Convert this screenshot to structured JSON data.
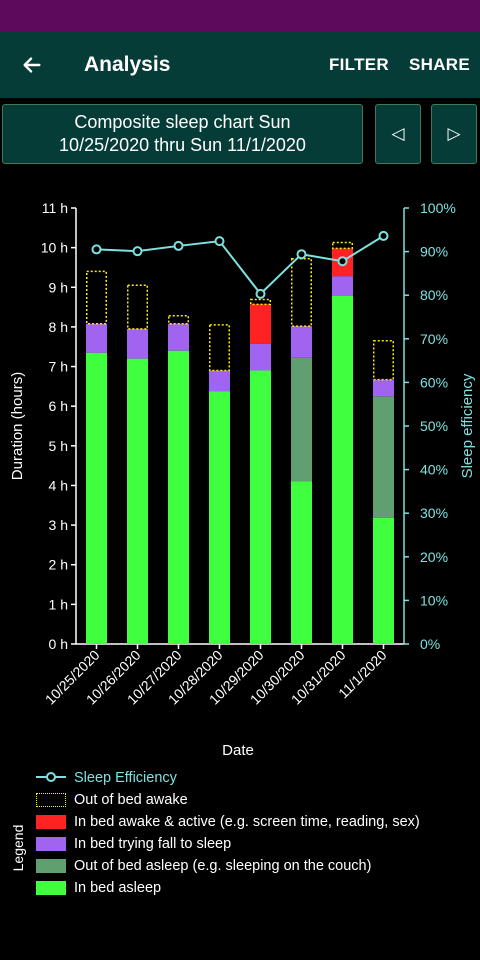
{
  "app_bar": {
    "title": "Analysis",
    "filter_label": "FILTER",
    "share_label": "SHARE",
    "back_icon": "arrow-left-icon"
  },
  "header": {
    "chart_title": "Composite sleep chart Sun\n10/25/2020 thru Sun 11/1/2020",
    "prev_symbol": "◁",
    "next_symbol": "▷"
  },
  "colors": {
    "status_bar": "#5e0a5c",
    "app_bar": "#063c38",
    "in_bed_asleep": "#3fff3f",
    "out_of_bed_asleep": "#5f9f70",
    "in_bed_trying": "#a064f0",
    "in_bed_awake_active": "#ff2222",
    "out_of_bed_awake": "#ffee00",
    "efficiency": "#7fe0e0"
  },
  "chart_data": {
    "type": "bar",
    "stacked": true,
    "categories": [
      "10/25/2020",
      "10/26/2020",
      "10/27/2020",
      "10/28/2020",
      "10/29/2020",
      "10/30/2020",
      "10/31/2020",
      "11/1/2020"
    ],
    "xlabel": "Date",
    "ylabel": "Duration (hours)",
    "y2label": "Sleep efficiency",
    "ylim": [
      0,
      11
    ],
    "y_ticks": [
      "0 h",
      "1 h",
      "2 h",
      "3 h",
      "4 h",
      "5 h",
      "6 h",
      "7 h",
      "8 h",
      "9 h",
      "10 h",
      "11 h"
    ],
    "y2lim": [
      0,
      100
    ],
    "y2_ticks": [
      "0%",
      "10%",
      "20%",
      "30%",
      "40%",
      "50%",
      "60%",
      "70%",
      "80%",
      "90%",
      "100%"
    ],
    "series": [
      {
        "name": "In bed asleep",
        "key": "in_bed_asleep",
        "values": [
          7.35,
          7.2,
          7.4,
          6.38,
          6.9,
          4.1,
          8.78,
          3.18
        ]
      },
      {
        "name": "Out of bed asleep (e.g. sleeping on the couch)",
        "key": "out_of_bed_asleep",
        "values": [
          0,
          0,
          0,
          0,
          0,
          3.12,
          0,
          3.07
        ]
      },
      {
        "name": "In bed trying fall to sleep",
        "key": "in_bed_trying",
        "values": [
          0.73,
          0.75,
          0.68,
          0.52,
          0.67,
          0.8,
          0.5,
          0.42
        ]
      },
      {
        "name": "In bed awake & active (e.g. screen time, reading, sex)",
        "key": "in_bed_awake_active",
        "values": [
          0,
          0,
          0,
          0,
          1.0,
          0,
          0.7,
          0
        ]
      },
      {
        "name": "Out of bed awake",
        "key": "out_of_bed_awake",
        "values": [
          1.32,
          1.1,
          0.2,
          1.15,
          0.12,
          1.7,
          0.15,
          0.98
        ],
        "style": "dotted-outline"
      }
    ],
    "line_series": {
      "name": "Sleep Efficiency",
      "values": [
        90.5,
        90.1,
        91.3,
        92.4,
        80.3,
        89.4,
        87.8,
        93.6
      ],
      "axis": "right"
    },
    "legend_title": "Legend",
    "legend_position": "bottom"
  }
}
